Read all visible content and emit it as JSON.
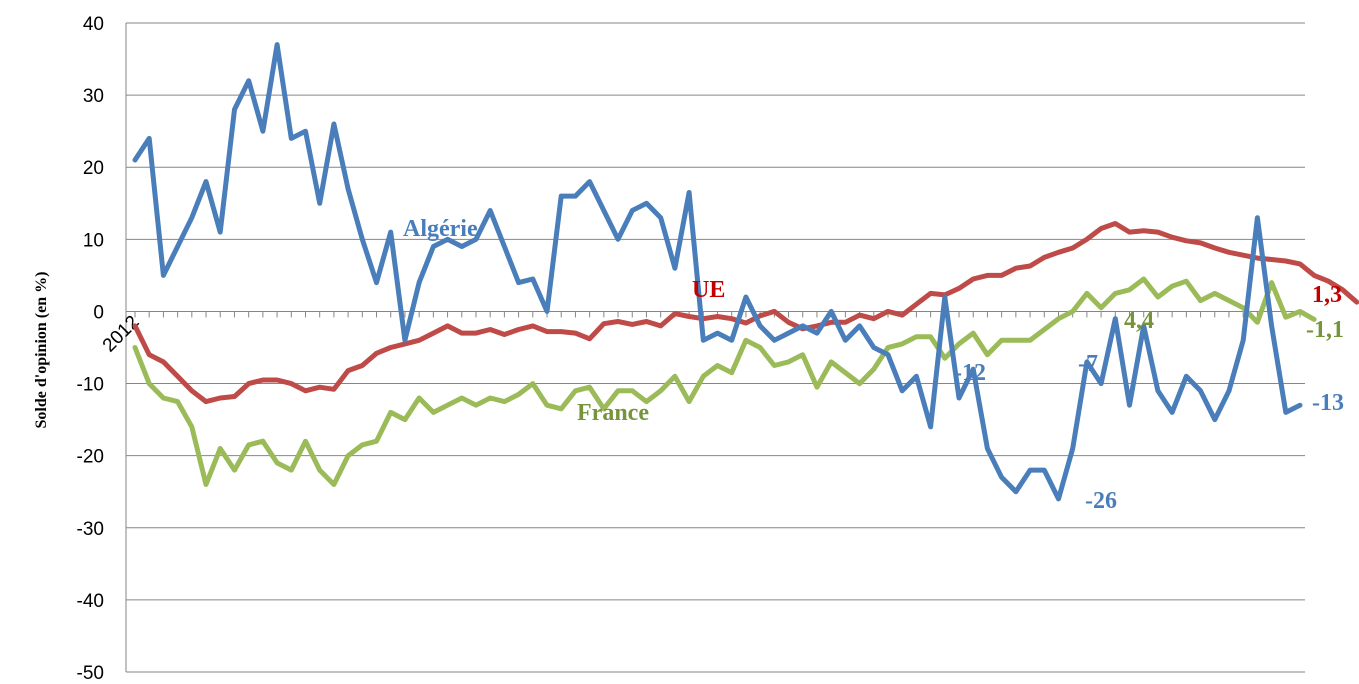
{
  "chart_data": {
    "type": "line",
    "title": "",
    "xlabel": "",
    "ylabel": "Solde d'opinion (en %)",
    "ylim": [
      -50,
      40
    ],
    "yticks": [
      40,
      30,
      20,
      10,
      0,
      -10,
      -20,
      -30,
      -40,
      -50
    ],
    "ytick_labels": [
      "40",
      "30",
      "20",
      "10",
      "0",
      "-10",
      "-20",
      "-30",
      "-40",
      "-50"
    ],
    "x_tick_labels": [
      "2012"
    ],
    "grid": true,
    "legend": "none",
    "series": [
      {
        "name": "Algérie",
        "color": "#4a7ebb",
        "values": [
          21,
          24,
          5,
          9,
          13,
          18,
          11,
          28,
          32,
          25,
          37,
          24,
          25,
          15,
          26,
          17,
          10,
          4,
          11,
          -4,
          4,
          9,
          10,
          9,
          10,
          14,
          9,
          4,
          4.5,
          0,
          16,
          16,
          18,
          14,
          10,
          14,
          15,
          13,
          6,
          16.5,
          -4,
          -3,
          -4,
          2,
          -2,
          -4,
          -3,
          -2,
          -3,
          0,
          -4,
          -2,
          -5,
          -6,
          -11,
          -9,
          -16,
          2,
          -12,
          -8,
          -19,
          -23,
          -25,
          -22,
          -22,
          -26,
          -19,
          -7,
          -10,
          -1,
          -13,
          -2,
          -11,
          -14,
          -9,
          -11,
          -15,
          -11,
          -4,
          13,
          -2,
          -14,
          -13
        ]
      },
      {
        "name": "UE",
        "color": "#be4b48",
        "values": [
          -2,
          -6,
          -7,
          -9,
          -11,
          -12.5,
          -12,
          -11.8,
          -10,
          -9.5,
          -9.5,
          -10,
          -11,
          -10.5,
          -10.8,
          -8.2,
          -7.5,
          -5.8,
          -5,
          -4.5,
          -4,
          -3,
          -2,
          -3,
          -3,
          -2.5,
          -3.2,
          -2.5,
          -2,
          -2.8,
          -2.8,
          -3,
          -3.8,
          -1.7,
          -1.4,
          -1.8,
          -1.4,
          -2,
          -0.3,
          -0.7,
          -1,
          -0.7,
          -1,
          -1.6,
          -0.6,
          0,
          -1.5,
          -2.4,
          -2,
          -1.5,
          -1.5,
          -0.5,
          -1,
          0,
          -0.5,
          1,
          2.5,
          2.3,
          3.2,
          4.5,
          5,
          5,
          6,
          6.3,
          7.5,
          8.2,
          8.8,
          10,
          11.5,
          12.2,
          11,
          11.2,
          11,
          10.3,
          9.8,
          9.5,
          8.8,
          8.2,
          7.8,
          7.4,
          7.2,
          7,
          6.6,
          5,
          4.2,
          3,
          1.3
        ]
      },
      {
        "name": "France",
        "color": "#9bbb59",
        "values": [
          -5,
          -10,
          -12,
          -12.5,
          -16,
          -24,
          -19,
          -22,
          -18.5,
          -18,
          -21,
          -22,
          -18,
          -22,
          -24,
          -20,
          -18.5,
          -18,
          -14,
          -15,
          -12,
          -14,
          -13,
          -12,
          -13,
          -12,
          -12.5,
          -11.5,
          -10,
          -13,
          -13.5,
          -11,
          -10.5,
          -13.5,
          -11,
          -11,
          -12.5,
          -11,
          -9,
          -12.5,
          -9,
          -7.5,
          -8.5,
          -4,
          -5,
          -7.5,
          -7,
          -6,
          -10.5,
          -7,
          -8.5,
          -10,
          -8,
          -5,
          -4.5,
          -3.5,
          -3.5,
          -6.5,
          -4.5,
          -3,
          -6,
          -4,
          -4,
          -4,
          -2.5,
          -1,
          0,
          2.5,
          0.5,
          2.5,
          3,
          4.5,
          2,
          3.5,
          4.2,
          1.5,
          2.5,
          1.5,
          0.5,
          -1.5,
          4,
          -0.8,
          0,
          -1.1
        ]
      }
    ],
    "annotations": [
      {
        "text": "Algérie",
        "color": "#4a7ebb"
      },
      {
        "text": "UE",
        "color": "#c00000"
      },
      {
        "text": "France",
        "color": "#77933c"
      },
      {
        "text": "1,3",
        "color": "#c00000"
      },
      {
        "text": "-1,1",
        "color": "#77933c"
      },
      {
        "text": "-13",
        "color": "#4a7ebb"
      },
      {
        "text": "-26",
        "color": "#4a7ebb"
      },
      {
        "text": "-12",
        "color": "#4a7ebb"
      },
      {
        "text": "-7",
        "color": "#4a7ebb"
      },
      {
        "text": "4,4",
        "color": "#77933c"
      }
    ]
  }
}
